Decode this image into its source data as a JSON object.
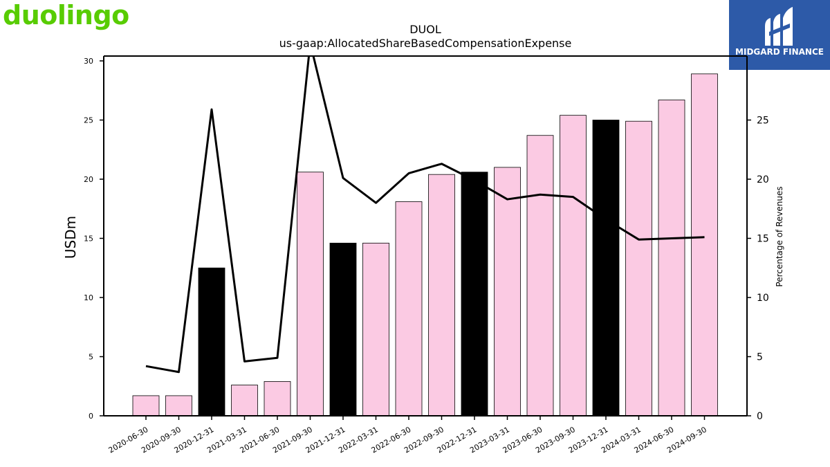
{
  "branding": {
    "left_logo_text": "duolingo",
    "right_logo_text": "MIDGARD FINANCE",
    "left_logo_color": "#58cc02",
    "right_logo_bg": "#2d5aa8"
  },
  "chart_data": {
    "type": "bar",
    "title": "DUOL",
    "subtitle": "us-gaap:AllocatedShareBasedCompensationExpense",
    "ylabel": "USDm",
    "y2label": "Percentage of Revenues",
    "ylim": [
      0,
      30
    ],
    "y2lim": [
      0,
      30
    ],
    "yticks": [
      0,
      5,
      10,
      15,
      20,
      25,
      30
    ],
    "y2ticks": [
      0,
      5,
      10,
      15,
      20,
      25
    ],
    "categories": [
      "2020-06-30",
      "2020-09-30",
      "2020-12-31",
      "2021-03-31",
      "2021-06-30",
      "2021-09-30",
      "2021-12-31",
      "2022-03-31",
      "2022-06-30",
      "2022-09-30",
      "2022-12-31",
      "2023-03-31",
      "2023-06-30",
      "2023-09-30",
      "2023-12-31",
      "2024-03-31",
      "2024-06-30",
      "2024-09-30"
    ],
    "series": [
      {
        "kind": "bar",
        "values": [
          1.7,
          1.7,
          12.5,
          2.6,
          2.9,
          20.6,
          14.6,
          14.6,
          18.1,
          20.4,
          20.6,
          21.0,
          23.7,
          25.4,
          25.0,
          24.9,
          26.7,
          28.9
        ],
        "colors": [
          "#fbcae3",
          "#fbcae3",
          "#000000",
          "#fbcae3",
          "#fbcae3",
          "#fbcae3",
          "#000000",
          "#fbcae3",
          "#fbcae3",
          "#fbcae3",
          "#000000",
          "#fbcae3",
          "#fbcae3",
          "#fbcae3",
          "#000000",
          "#fbcae3",
          "#fbcae3",
          "#fbcae3"
        ]
      },
      {
        "kind": "line",
        "axis": "right",
        "color": "#000000",
        "values": [
          4.2,
          3.7,
          25.9,
          4.6,
          4.9,
          31.5,
          20.1,
          18.0,
          20.5,
          21.3,
          19.9,
          18.3,
          18.7,
          18.5,
          16.6,
          14.9,
          15.0,
          15.1
        ]
      }
    ],
    "colors": {
      "highlight": "#000000",
      "normal": "#fbcae3",
      "line": "#000000"
    },
    "grid": false,
    "legend": "none"
  }
}
